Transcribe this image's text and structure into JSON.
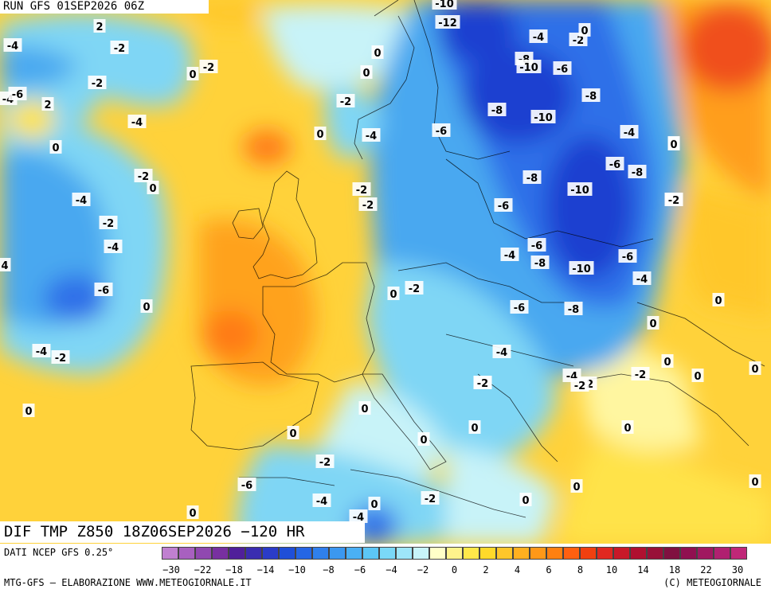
{
  "header": {
    "run_label": "RUN GFS 01SEP2026 06Z"
  },
  "map": {
    "title": "DIF TMP Z850 18Z06SEP2026 −120 HR",
    "variable": "850 hPa temperature difference",
    "colors": {
      "deep_blue": "#1a3fd0",
      "blue": "#2f6fe8",
      "mid_blue": "#4aa8f0",
      "light_blue": "#7fd6f5",
      "pale_cyan": "#c8f3f8",
      "pale_yellow": "#fff6a0",
      "yellow": "#ffe34a",
      "gold": "#ffc72a",
      "orange": "#ff9e1e",
      "dark_orange": "#ff7a12",
      "red_orange": "#f0501a"
    },
    "contour_labels": [
      {
        "text": "2"
      },
      {
        "text": "-4"
      },
      {
        "text": "-2"
      },
      {
        "text": "-2"
      },
      {
        "text": "-2"
      },
      {
        "text": "0"
      },
      {
        "text": "-4"
      },
      {
        "text": "-6"
      },
      {
        "text": "2"
      },
      {
        "text": "-4"
      },
      {
        "text": "0"
      },
      {
        "text": "-2"
      },
      {
        "text": "0"
      },
      {
        "text": "-4"
      },
      {
        "text": "-2"
      },
      {
        "text": "-4"
      },
      {
        "text": "4"
      },
      {
        "text": "-6"
      },
      {
        "text": "0"
      },
      {
        "text": "-4"
      },
      {
        "text": "-2"
      },
      {
        "text": "0"
      },
      {
        "text": "0"
      },
      {
        "text": "0"
      },
      {
        "text": "-2"
      },
      {
        "text": "0"
      },
      {
        "text": "0"
      },
      {
        "text": "-4"
      },
      {
        "text": "-2"
      },
      {
        "text": "-2"
      },
      {
        "text": "-2"
      },
      {
        "text": "-2"
      },
      {
        "text": "-4"
      },
      {
        "text": "-6"
      },
      {
        "text": "-4"
      },
      {
        "text": "0"
      },
      {
        "text": "-2"
      },
      {
        "text": "0"
      },
      {
        "text": "-2"
      },
      {
        "text": "0"
      },
      {
        "text": "-2"
      },
      {
        "text": "0"
      },
      {
        "text": "-2"
      },
      {
        "text": "0"
      },
      {
        "text": "-10"
      },
      {
        "text": "-12"
      },
      {
        "text": "-4"
      },
      {
        "text": "0"
      },
      {
        "text": "-2"
      },
      {
        "text": "-8"
      },
      {
        "text": "-10"
      },
      {
        "text": "-6"
      },
      {
        "text": "-8"
      },
      {
        "text": "-8"
      },
      {
        "text": "-10"
      },
      {
        "text": "-6"
      },
      {
        "text": "-4"
      },
      {
        "text": "0"
      },
      {
        "text": "-6"
      },
      {
        "text": "-8"
      },
      {
        "text": "-8"
      },
      {
        "text": "-10"
      },
      {
        "text": "-2"
      },
      {
        "text": "-6"
      },
      {
        "text": "-6"
      },
      {
        "text": "-4"
      },
      {
        "text": "-8"
      },
      {
        "text": "-10"
      },
      {
        "text": "-6"
      },
      {
        "text": "-4"
      },
      {
        "text": "-6"
      },
      {
        "text": "-8"
      },
      {
        "text": "0"
      },
      {
        "text": "-4"
      },
      {
        "text": "0"
      },
      {
        "text": "-2"
      },
      {
        "text": "-4"
      },
      {
        "text": "-2"
      },
      {
        "text": "-2"
      },
      {
        "text": "0"
      },
      {
        "text": "0"
      },
      {
        "text": "0"
      },
      {
        "text": "0"
      },
      {
        "text": "0"
      },
      {
        "text": "0"
      },
      {
        "text": "0"
      },
      {
        "text": "0"
      },
      {
        "text": "0"
      }
    ]
  },
  "legend": {
    "source_label": "DATI NCEP GFS 0.25°",
    "colors": [
      "#c080d0",
      "#a860c0",
      "#9048b0",
      "#7830a0",
      "#50209a",
      "#3a2db0",
      "#2a3cc8",
      "#1f4fd8",
      "#2566e4",
      "#2f80ec",
      "#3b98f0",
      "#4ab0f4",
      "#5cc6f6",
      "#7ad8f8",
      "#9ee6fa",
      "#c8f4fa",
      "#ffffc8",
      "#fff38c",
      "#ffe84a",
      "#ffd92a",
      "#ffc62a",
      "#ffb020",
      "#ff9818",
      "#ff8010",
      "#ff6010",
      "#f04010",
      "#e02820",
      "#c81828",
      "#b01030",
      "#981038",
      "#801040",
      "#901050",
      "#a01860",
      "#b02070",
      "#c02878"
    ],
    "tick_labels": [
      "−30",
      "−22",
      "−18",
      "−14",
      "−10",
      "−8",
      "−6",
      "−4",
      "−2",
      "0",
      "2",
      "4",
      "6",
      "8",
      "10",
      "14",
      "18",
      "22",
      "30"
    ]
  },
  "footer": {
    "left": "MTG-GFS — ELABORAZIONE WWW.METEOGIORNALE.IT",
    "right": "(C) METEOGIORNALE"
  }
}
